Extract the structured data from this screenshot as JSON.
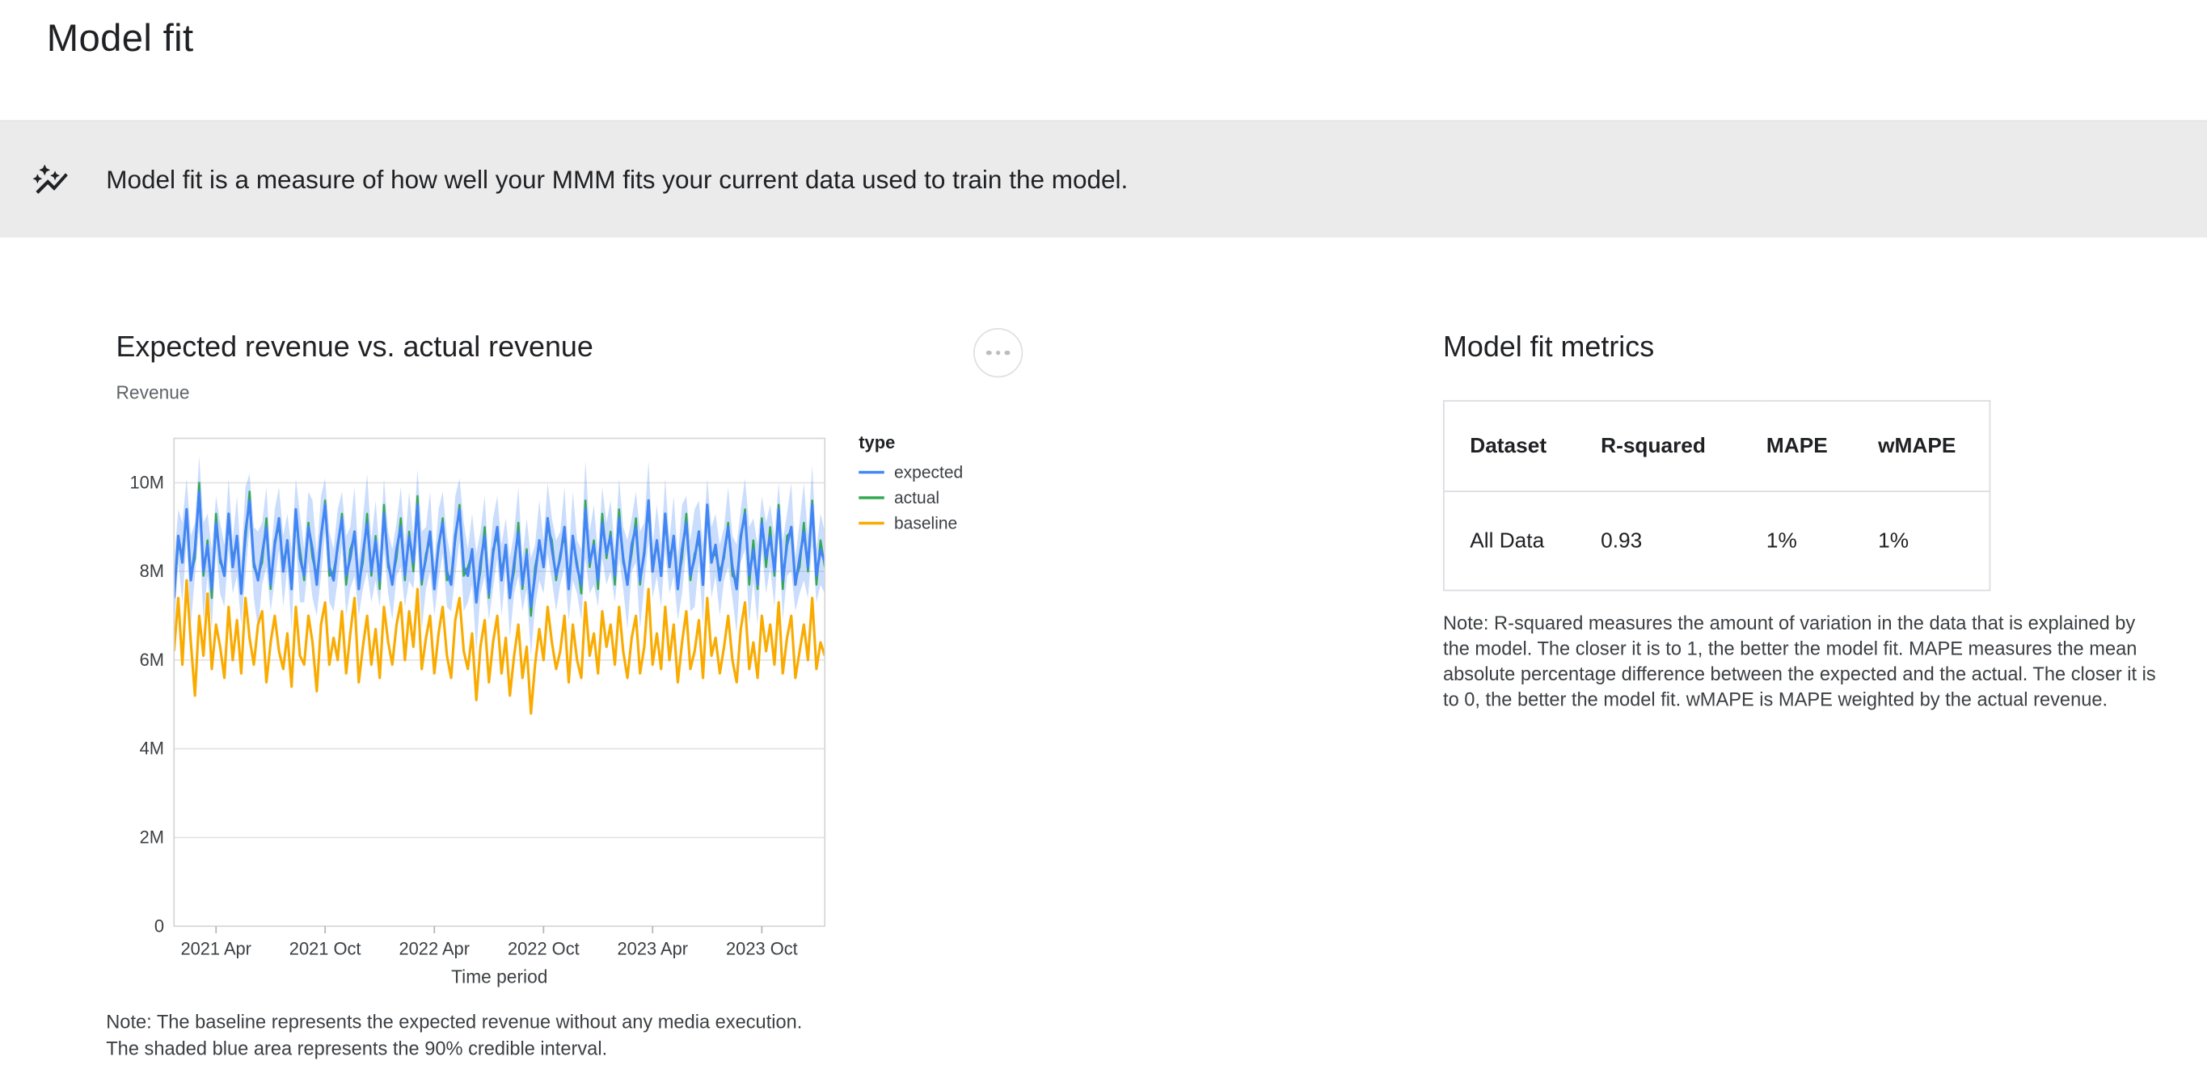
{
  "page": {
    "title": "Model fit"
  },
  "banner": {
    "icon": "auto-graph-icon",
    "text": "Model fit is a measure of how well your MMM fits your current data used to train the model."
  },
  "chart_section": {
    "title": "Expected revenue vs. actual revenue",
    "y_axis_title": "Revenue",
    "note": "Note: The baseline represents the expected revenue without any media execution.\nThe shaded blue area represents the 90% credible interval."
  },
  "chart_data": {
    "type": "line",
    "title": "Expected revenue vs. actual revenue",
    "xlabel": "Time period",
    "ylabel": "Revenue",
    "ylim": [
      0,
      11
    ],
    "y_unit": "M",
    "grid": "horizontal",
    "legend_position": "right",
    "legend_title": "type",
    "y_ticks": [
      {
        "v": 0,
        "label": "0"
      },
      {
        "v": 2,
        "label": "2M"
      },
      {
        "v": 4,
        "label": "4M"
      },
      {
        "v": 6,
        "label": "6M"
      },
      {
        "v": 8,
        "label": "8M"
      },
      {
        "v": 10,
        "label": "10M"
      }
    ],
    "x_ticks": [
      {
        "i": 10,
        "label": "2021 Apr"
      },
      {
        "i": 36,
        "label": "2021 Oct"
      },
      {
        "i": 62,
        "label": "2022 Apr"
      },
      {
        "i": 88,
        "label": "2022 Oct"
      },
      {
        "i": 114,
        "label": "2023 Apr"
      },
      {
        "i": 140,
        "label": "2023 Oct"
      }
    ],
    "series": [
      {
        "name": "expected",
        "color": "#4285f4",
        "values": [
          7.4,
          8.8,
          8.2,
          9.4,
          7.8,
          8.5,
          9.8,
          8.0,
          8.6,
          7.6,
          9.1,
          8.3,
          7.9,
          9.3,
          8.1,
          8.8,
          7.5,
          8.9,
          9.6,
          8.2,
          7.8,
          8.4,
          9.0,
          7.7,
          8.6,
          9.2,
          8.0,
          8.7,
          7.6,
          9.4,
          8.3,
          7.9,
          9.0,
          8.5,
          7.7,
          8.8,
          9.5,
          8.1,
          7.8,
          8.6,
          9.2,
          7.9,
          8.3,
          8.9,
          7.6,
          8.4,
          9.1,
          8.0,
          8.7,
          7.8,
          9.3,
          8.2,
          7.7,
          8.5,
          9.0,
          7.9,
          8.8,
          8.2,
          9.5,
          7.8,
          8.3,
          8.9,
          7.6,
          8.6,
          9.1,
          8.0,
          7.7,
          8.8,
          9.4,
          8.1,
          7.9,
          8.5,
          7.3,
          8.2,
          8.8,
          7.5,
          8.4,
          9.0,
          7.8,
          8.6,
          7.4,
          8.2,
          8.9,
          7.7,
          8.4,
          7.2,
          7.9,
          8.7,
          8.1,
          9.2,
          8.5,
          7.9,
          8.3,
          9.0,
          7.6,
          8.8,
          8.1,
          7.7,
          9.4,
          8.2,
          8.6,
          7.8,
          9.1,
          8.4,
          8.8,
          7.9,
          9.2,
          8.3,
          7.7,
          8.6,
          9.0,
          7.8,
          8.4,
          9.6,
          8.0,
          8.7,
          7.9,
          9.3,
          8.1,
          8.8,
          7.6,
          8.5,
          9.1,
          7.9,
          8.3,
          8.9,
          7.7,
          9.5,
          8.2,
          8.6,
          7.8,
          8.4,
          9.0,
          8.1,
          7.6,
          8.8,
          9.3,
          7.9,
          8.5,
          7.7,
          9.1,
          8.3,
          8.8,
          8.0,
          9.4,
          7.8,
          8.6,
          9.0,
          7.7,
          8.3,
          8.9,
          8.1,
          9.5,
          7.9,
          8.5,
          8.2
        ]
      },
      {
        "name": "actual",
        "color": "#34a853",
        "values": [
          7.5,
          8.6,
          8.4,
          9.3,
          7.9,
          8.3,
          10.0,
          7.9,
          8.7,
          7.4,
          9.3,
          8.2,
          8.0,
          9.1,
          8.3,
          8.7,
          7.6,
          8.7,
          9.8,
          8.1,
          7.9,
          8.2,
          9.2,
          7.6,
          8.7,
          9.0,
          8.2,
          8.6,
          7.7,
          9.2,
          8.5,
          7.8,
          9.1,
          8.3,
          7.9,
          8.7,
          9.6,
          7.9,
          8.0,
          8.5,
          9.3,
          7.7,
          8.5,
          8.8,
          7.7,
          8.2,
          9.3,
          7.9,
          8.8,
          7.6,
          9.5,
          8.1,
          7.8,
          8.3,
          9.2,
          7.8,
          8.9,
          8.0,
          9.7,
          7.7,
          8.4,
          8.7,
          7.8,
          8.5,
          9.2,
          7.8,
          7.9,
          8.7,
          9.5,
          7.9,
          8.1,
          8.4,
          7.4,
          8.0,
          9.0,
          7.4,
          8.5,
          8.8,
          8.0,
          8.5,
          7.5,
          8.0,
          9.1,
          7.6,
          8.5,
          7.0,
          8.1,
          8.6,
          8.2,
          9.0,
          8.7,
          7.8,
          8.4,
          8.8,
          7.8,
          8.7,
          8.2,
          7.5,
          9.6,
          8.1,
          8.7,
          7.6,
          9.3,
          8.3,
          8.9,
          7.7,
          9.4,
          8.2,
          7.8,
          8.4,
          9.2,
          7.7,
          8.5,
          9.4,
          8.2,
          8.6,
          8.0,
          9.1,
          8.3,
          8.7,
          7.7,
          8.3,
          9.3,
          7.8,
          8.4,
          8.7,
          7.9,
          9.4,
          8.3,
          8.4,
          8.0,
          8.3,
          9.1,
          7.9,
          7.8,
          8.7,
          9.4,
          7.7,
          8.7,
          7.6,
          9.2,
          8.1,
          9.0,
          7.9,
          9.5,
          7.6,
          8.8,
          8.9,
          7.8,
          8.1,
          9.1,
          8.0,
          9.6,
          7.7,
          8.7,
          8.1
        ]
      },
      {
        "name": "baseline",
        "color": "#f9ab00",
        "values": [
          6.2,
          7.4,
          5.9,
          7.8,
          6.4,
          5.2,
          7.0,
          6.1,
          7.5,
          5.8,
          6.8,
          6.3,
          5.6,
          7.2,
          6.0,
          6.9,
          5.7,
          7.4,
          6.5,
          5.9,
          6.8,
          7.1,
          5.5,
          6.4,
          7.0,
          6.2,
          5.8,
          6.6,
          5.4,
          7.2,
          6.1,
          5.9,
          7.0,
          6.4,
          5.3,
          6.8,
          7.3,
          5.9,
          6.5,
          6.0,
          7.1,
          5.7,
          6.6,
          7.4,
          5.5,
          6.3,
          7.0,
          5.9,
          6.7,
          5.6,
          7.2,
          6.4,
          5.9,
          6.8,
          7.3,
          6.0,
          7.1,
          6.3,
          7.6,
          5.8,
          6.5,
          7.0,
          5.7,
          6.6,
          7.2,
          6.1,
          5.6,
          6.9,
          7.4,
          6.2,
          5.8,
          6.6,
          5.1,
          6.3,
          6.9,
          5.5,
          6.4,
          7.0,
          5.7,
          6.5,
          5.2,
          6.1,
          6.8,
          5.6,
          6.3,
          4.8,
          5.9,
          6.7,
          6.0,
          7.2,
          6.4,
          5.8,
          6.2,
          7.0,
          5.5,
          6.8,
          6.0,
          5.6,
          7.3,
          6.1,
          6.6,
          5.7,
          7.1,
          6.3,
          6.8,
          5.9,
          7.2,
          6.2,
          5.6,
          6.5,
          7.0,
          5.7,
          6.3,
          7.6,
          5.9,
          6.6,
          5.8,
          7.2,
          6.0,
          6.8,
          5.5,
          6.4,
          7.1,
          5.8,
          6.2,
          6.9,
          5.6,
          7.4,
          6.1,
          6.5,
          5.7,
          6.3,
          7.0,
          6.0,
          5.5,
          6.7,
          7.3,
          5.8,
          6.4,
          5.6,
          7.0,
          6.2,
          6.8,
          5.9,
          7.3,
          5.7,
          6.5,
          7.0,
          5.6,
          6.2,
          6.8,
          6.0,
          7.4,
          5.8,
          6.4,
          6.1
        ]
      }
    ],
    "band": {
      "name": "90% credible interval",
      "applies_to": "expected",
      "color": "#4285f4",
      "opacity": 0.28,
      "halfwidth": [
        0.8,
        0.6,
        0.9,
        0.7,
        1.0,
        0.6,
        0.8,
        1.1,
        0.7,
        0.9,
        0.6,
        0.8,
        0.7,
        0.8,
        0.6,
        0.9,
        0.7,
        1.0,
        0.6,
        0.8,
        1.1,
        0.7,
        0.9,
        0.6,
        0.8,
        0.7,
        0.8,
        0.6,
        0.9,
        0.7,
        1.0,
        0.6,
        0.8,
        1.1,
        0.7,
        0.9,
        0.6,
        0.8,
        0.7,
        0.8,
        0.6,
        0.9,
        0.7,
        1.0,
        0.6,
        0.8,
        1.1,
        0.7,
        0.9,
        0.6,
        0.8,
        0.7,
        0.8,
        0.6,
        0.9,
        0.7,
        1.0,
        0.6,
        0.8,
        1.1,
        0.7,
        0.9,
        0.6,
        0.8,
        0.7,
        0.8,
        0.6,
        0.9,
        0.7,
        1.0,
        0.6,
        0.8,
        1.1,
        0.7,
        0.9,
        0.6,
        0.8,
        0.7,
        0.8,
        0.6,
        0.9,
        0.7,
        1.0,
        0.6,
        0.8,
        1.1,
        0.7,
        0.9,
        0.6,
        0.8,
        0.7,
        0.8,
        0.6,
        0.9,
        0.7,
        1.0,
        0.6,
        0.8,
        1.1,
        0.7,
        0.9,
        0.6,
        0.8,
        0.7,
        0.8,
        0.6,
        0.9,
        0.7,
        1.0,
        0.6,
        0.8,
        1.1,
        0.7,
        0.9,
        0.6,
        0.8,
        0.7,
        0.8,
        0.6,
        0.9,
        0.7,
        1.0,
        0.6,
        0.8,
        1.1,
        0.7,
        0.9,
        0.6,
        0.8,
        0.7,
        0.8,
        0.6,
        0.9,
        0.7,
        1.0,
        0.6,
        0.8,
        1.1,
        0.7,
        0.9,
        0.6,
        0.8,
        0.7,
        0.8,
        0.6,
        0.9,
        0.7,
        1.0,
        0.6,
        0.8,
        1.1,
        0.7,
        0.9,
        0.6,
        0.8,
        0.7
      ]
    }
  },
  "metrics_section": {
    "title": "Model fit metrics",
    "table": {
      "columns": [
        "Dataset",
        "R-squared",
        "MAPE",
        "wMAPE"
      ],
      "rows": [
        [
          "All Data",
          "0.93",
          "1%",
          "1%"
        ]
      ]
    },
    "note": "Note: R-squared measures the amount of variation in the data that is explained by the model. The closer it is to 1, the better the model fit. MAPE measures the mean absolute percentage difference between the expected and the actual. The closer it is to 0, the better the model fit. wMAPE is MAPE weighted by the actual revenue."
  }
}
